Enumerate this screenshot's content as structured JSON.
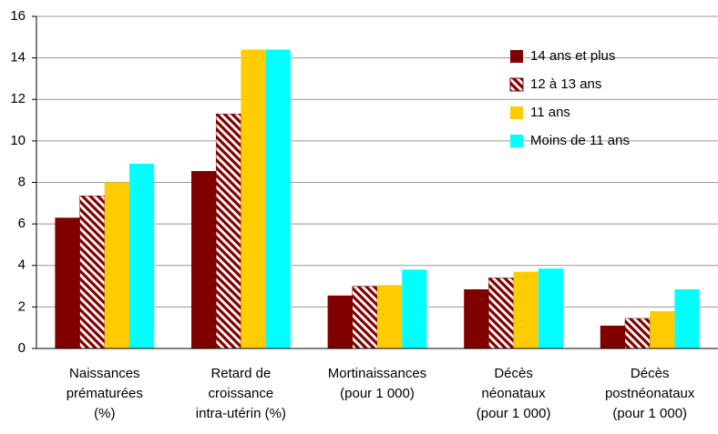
{
  "chart_data": {
    "type": "bar",
    "categories": [
      "Naissances\nprématurées\n(%)",
      "Retard de\ncroissance\nintra-utérin (%)",
      "Mortinaissances\n(pour 1 000)",
      "Décès\nnéonataux\n(pour 1 000)",
      "Décès\npostnéonataux\n(pour 1 000)"
    ],
    "series": [
      {
        "name": "14 ans et plus",
        "color": "#800000",
        "values": [
          6.3,
          8.55,
          2.55,
          2.85,
          1.1
        ]
      },
      {
        "name": "12 à 13 ans",
        "color": "#800000",
        "hatch": true,
        "values": [
          7.35,
          11.3,
          3.0,
          3.4,
          1.45
        ]
      },
      {
        "name": "11 ans",
        "color": "#ffcc00",
        "values": [
          8.0,
          14.4,
          3.05,
          3.7,
          1.8
        ]
      },
      {
        "name": "Moins de 11 ans",
        "color": "#00ffff",
        "values": [
          8.9,
          14.4,
          3.8,
          3.85,
          2.85
        ]
      }
    ],
    "ylim": [
      0,
      16
    ],
    "yticks": [
      0,
      2,
      4,
      6,
      8,
      10,
      12,
      14,
      16
    ],
    "grid": true,
    "legend": "upper right"
  }
}
